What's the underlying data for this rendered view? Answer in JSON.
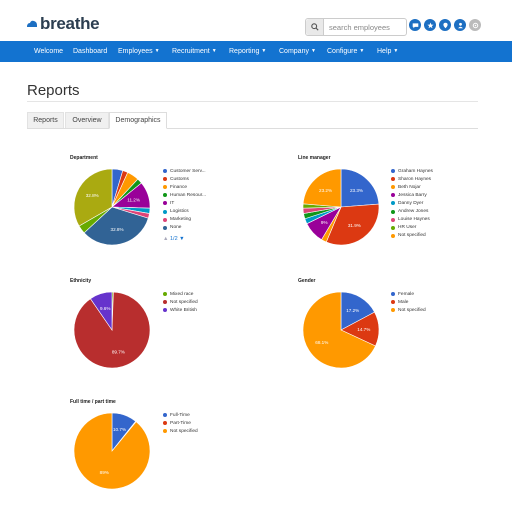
{
  "app": {
    "logo_text": "breathe"
  },
  "search": {
    "placeholder": "search employees"
  },
  "nav": {
    "items": [
      {
        "label": "Welcome",
        "has_menu": false
      },
      {
        "label": "Dashboard",
        "has_menu": false
      },
      {
        "label": "Employees",
        "has_menu": true
      },
      {
        "label": "Recruitment",
        "has_menu": true
      },
      {
        "label": "Reporting",
        "has_menu": true
      },
      {
        "label": "Company",
        "has_menu": true
      },
      {
        "label": "Configure",
        "has_menu": true
      },
      {
        "label": "Help",
        "has_menu": true
      }
    ]
  },
  "page": {
    "title": "Reports"
  },
  "tabs": [
    {
      "label": "Reports"
    },
    {
      "label": "Overview"
    },
    {
      "label": "Demographics",
      "active": true
    }
  ],
  "pager": {
    "text": "1/2"
  },
  "chart_data": [
    {
      "type": "pie",
      "title": "Department",
      "categories": [
        "Customer Serv...",
        "Customs",
        "Finance",
        "Human Resour...",
        "IT",
        "Logistics",
        "Marketing",
        "None"
      ],
      "values": [
        4.5,
        2.2,
        5.0,
        2.2,
        11.2,
        2.2,
        2.0,
        32.8,
        3.5,
        32.8
      ],
      "slice_categories": [
        "Customer Serv...",
        "Customs",
        "Finance",
        "Human Resour...",
        "IT",
        "Logistics",
        "Marketing",
        "None",
        "Marketing",
        "Finance"
      ],
      "colors": [
        "#3366cc",
        "#dc3912",
        "#ff9900",
        "#109618",
        "#990099",
        "#0099c6",
        "#dd4477",
        "#316395",
        "#66aa00",
        "#aaaa11"
      ],
      "legend_colors": [
        "#3366cc",
        "#dc3912",
        "#ff9900",
        "#109618",
        "#990099",
        "#0099c6",
        "#dd4477",
        "#316395"
      ],
      "labels": [
        "",
        "",
        "",
        "",
        "11.2%",
        "",
        "",
        "32.8%",
        "",
        "32.8%"
      ],
      "legend_position": "right"
    },
    {
      "type": "pie",
      "title": "Line manager",
      "categories": [
        "Graham Haynes",
        "Sharon Haynes",
        "Beth Nojar",
        "Jessica Barry",
        "Danny Dyer",
        "Andrew Jones",
        "Louise Haynes",
        "HR User",
        "Not specified"
      ],
      "values": [
        23.3,
        31.9,
        2.2,
        9.0,
        2.2,
        2.2,
        2.2,
        1.8,
        23.2
      ],
      "colors": [
        "#3366cc",
        "#dc3912",
        "#ff9900",
        "#990099",
        "#0099c6",
        "#109618",
        "#dd4477",
        "#66aa00",
        "#ff9900"
      ],
      "legend_colors": [
        "#3366cc",
        "#dc3912",
        "#ff9900",
        "#990099",
        "#0099c6",
        "#109618",
        "#dd4477",
        "#66aa00",
        "#ff9900"
      ],
      "labels": [
        "23.3%",
        "31.9%",
        "",
        "9%",
        "",
        "",
        "",
        "",
        "23.2%"
      ],
      "legend_position": "right"
    },
    {
      "type": "pie",
      "title": "Ethnicity",
      "categories": [
        "Mixed race",
        "Not specified",
        "White British"
      ],
      "values": [
        0.6,
        89.7,
        9.6
      ],
      "colors": [
        "#66aa00",
        "#b82e2e",
        "#6633cc"
      ],
      "labels": [
        "",
        "89.7%",
        "9.6%"
      ],
      "legend_position": "right"
    },
    {
      "type": "pie",
      "title": "Gender",
      "categories": [
        "Female",
        "Male",
        "Not specified"
      ],
      "values": [
        17.2,
        14.7,
        68.1
      ],
      "colors": [
        "#3366cc",
        "#dc3912",
        "#ff9900"
      ],
      "labels": [
        "17.2%",
        "14.7%",
        "68.1%"
      ],
      "legend_position": "right"
    },
    {
      "type": "pie",
      "title": "Full time / part time",
      "categories": [
        "Full-Time",
        "Part-Time",
        "Not specified"
      ],
      "values": [
        10.7,
        0.3,
        89.0
      ],
      "colors": [
        "#3366cc",
        "#dc3912",
        "#ff9900"
      ],
      "labels": [
        "10.7%",
        "",
        "89%"
      ],
      "legend_position": "right"
    }
  ]
}
